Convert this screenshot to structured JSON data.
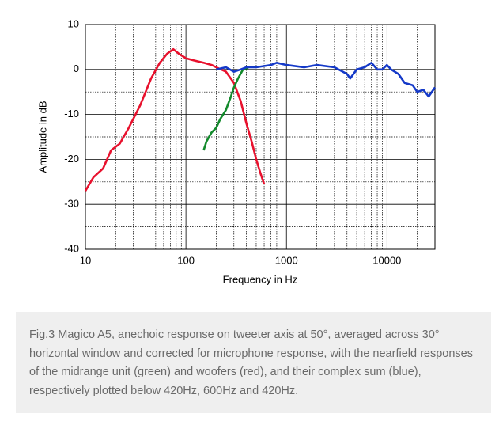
{
  "chart_data": {
    "type": "line",
    "xlabel": "Frequency  in Hz",
    "ylabel": "Amplitude in dB",
    "xlog": true,
    "grid": true,
    "xlim": [
      10,
      30000
    ],
    "xticks": [
      10,
      100,
      1000,
      10000
    ],
    "ylim": [
      -40,
      10
    ],
    "yticks": [
      10,
      0,
      -10,
      -20,
      -30,
      -40
    ],
    "series": [
      {
        "name": "woofers",
        "color": "#e8112d",
        "x": [
          10,
          12,
          15,
          18,
          22,
          27,
          35,
          45,
          55,
          65,
          75,
          85,
          100,
          120,
          150,
          180,
          200,
          250,
          300,
          350,
          400,
          450,
          500,
          550,
          600
        ],
        "values": [
          -27,
          -24,
          -22,
          -18,
          -16.5,
          -13,
          -8,
          -2,
          1.5,
          3.5,
          4.5,
          3.5,
          2.5,
          2,
          1.5,
          1,
          0.5,
          -0.5,
          -3,
          -7,
          -12,
          -16,
          -20,
          -23,
          -25.5
        ]
      },
      {
        "name": "midrange",
        "color": "#138a2c",
        "x": [
          150,
          160,
          180,
          200,
          220,
          250,
          280,
          300,
          330,
          370,
          420
        ],
        "values": [
          -18,
          -16,
          -14,
          -13,
          -11,
          -9,
          -6,
          -4,
          -2,
          0,
          0.5
        ]
      },
      {
        "name": "sum",
        "color": "#1439c8",
        "x": [
          200,
          250,
          300,
          350,
          400,
          500,
          700,
          800,
          1000,
          1500,
          2000,
          3000,
          4000,
          4300,
          5000,
          6000,
          7000,
          8000,
          9000,
          10000,
          11000,
          13000,
          15000,
          18000,
          20000,
          23000,
          26000,
          30000
        ],
        "values": [
          0,
          0.5,
          -0.5,
          0,
          0.5,
          0.5,
          1,
          1.5,
          1,
          0.5,
          1,
          0.5,
          -1,
          -2,
          0,
          0.5,
          1.5,
          0,
          0,
          1,
          0,
          -1,
          -3,
          -3.5,
          -5,
          -4.5,
          -6,
          -4
        ]
      }
    ]
  },
  "caption": "Fig.3 Magico A5, anechoic response on tweeter axis at 50°, averaged across 30° horizontal window and corrected for microphone response, with the nearfield responses of the midrange unit (green) and woofers (red), and their complex sum (blue), respectively plotted below 420Hz, 600Hz and 420Hz."
}
